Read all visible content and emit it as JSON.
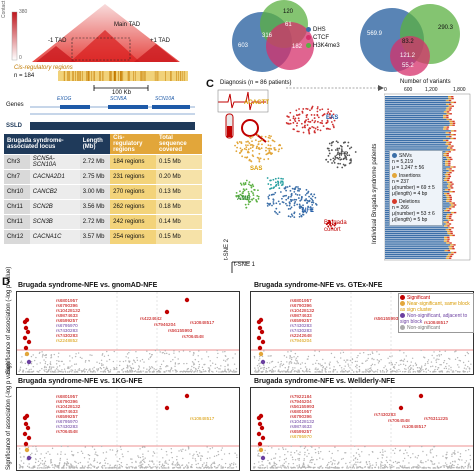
{
  "panelA": {
    "contact_label": "Contact",
    "contact_max": "380",
    "contact_min": "0",
    "main_tad": "Main TAD",
    "minus_tad": "-1 TAD",
    "plus_tad": "+1 TAD",
    "cis_label": "Cis-regulatory regions",
    "n_label": "n = 184",
    "scale": "100 Kb",
    "genes_label": "Genes",
    "gene1": "EXOG",
    "gene2": "SCN5A",
    "gene3": "SCN10A",
    "ssld_label": "SSLD"
  },
  "table": {
    "headers": [
      "Brugada syndrome-associated locus",
      "Length (Mb)",
      "Cis-regulatory regions",
      "Total sequence covered"
    ],
    "rows": [
      [
        "Chr3",
        "SCN5A-SCN10A",
        "2.72 Mb",
        "184 regions",
        "0.15 Mb"
      ],
      [
        "Chr7",
        "CACNA2D1",
        "2.75 Mb",
        "231 regions",
        "0.20 Mb"
      ],
      [
        "Chr10",
        "CANCB2",
        "3.00 Mb",
        "270 regions",
        "0.13 Mb"
      ],
      [
        "Chr11",
        "SCN2B",
        "3.56 Mb",
        "262 regions",
        "0.18 Mb"
      ],
      [
        "Chr11",
        "SCN3B",
        "2.72 Mb",
        "242 regions",
        "0.14 Mb"
      ],
      [
        "Chr12",
        "CACNA1C",
        "3.57 Mb",
        "254 regions",
        "0.15 Mb"
      ]
    ]
  },
  "panelB": {
    "venn1": {
      "a": "603",
      "b": "120",
      "c": "61",
      "d": "316",
      "e": "182",
      "legend": [
        "DHS",
        "CTCF",
        "H3K4me3"
      ]
    },
    "venn2": {
      "a": "569.9",
      "b": "290.3",
      "c": "83.2",
      "d": "121.2",
      "e": "55.2"
    }
  },
  "panelC": {
    "letter": "C",
    "diagnosis": "Diagnosis (n = 86 patients)",
    "seq": "ACAGTT",
    "clusters": [
      "EAS",
      "SAS",
      "AFR",
      "AMR",
      "NFE",
      "Brugada cohort"
    ],
    "xlab": "t-SNE 1",
    "ylab": "t-SNE 2",
    "variants_title": "Number of variants",
    "variants_ticks": [
      "0",
      "600",
      "1,200",
      "1,800"
    ],
    "variants_ylab": "Individual Brugada syndrome patients",
    "snvs": {
      "label": "SNVs",
      "n": "n = 5,219",
      "mu": "μ = 1,247 ± 56"
    },
    "ins": {
      "label": "Insertions",
      "n": "n = 237",
      "mu": "μ(number) = 69 ± 5",
      "len": "μ(length) = 4 bp"
    },
    "del": {
      "label": "Deletions",
      "n": "n = 266",
      "mu": "μ(number) = 53 ± 6",
      "len": "μ(length) = 5 bp"
    }
  },
  "panelD": {
    "letter": "D",
    "ylab": "Significance of association (-log p value)",
    "legend": [
      "Significant",
      "Near-significant, same block as sign cluster",
      "Non-significant, adjacent to sign block",
      "Non-significant"
    ],
    "plots": [
      {
        "title": "Brugada syndrome-NFE vs. gnomAD-NFE",
        "labels": [
          "rs6801957",
          "rs6790396",
          "rs10428132",
          "rs9874633",
          "rs6599257",
          "rs6795970",
          "rs7430283",
          "rs7430283",
          "rs2248852",
          "rs4224642",
          "rs7946204",
          "rs56155993",
          "rs7064548",
          "rs10848517"
        ]
      },
      {
        "title": "Brugada syndrome-NFE vs. GTEx-NFE",
        "labels": [
          "rs6801957",
          "rs6790396",
          "rs10428132",
          "rs9874633",
          "rs6599257",
          "rs7430283",
          "rs7430283",
          "rs2242648",
          "rs7946204",
          "rs56155993",
          "rs10848517"
        ]
      },
      {
        "title": "Brugada syndrome-NFE vs. 1KG-NFE",
        "labels": [
          "rs6801957",
          "rs6790396",
          "rs10428132",
          "rs9874633",
          "rs6599257",
          "rs6795970",
          "rs7430283",
          "rs7064548",
          "rs10848517"
        ]
      },
      {
        "title": "Brugada syndrome-NFE vs. Wellderly-NFE",
        "labels": [
          "rs7922184",
          "rs7946204",
          "rs56155993",
          "rs6801957",
          "rs6790396",
          "rs10428132",
          "rs9874633",
          "rs6599257",
          "rs6795970",
          "rs7430283",
          "rs7064548",
          "rs10848517",
          "rs76311225"
        ]
      }
    ]
  }
}
